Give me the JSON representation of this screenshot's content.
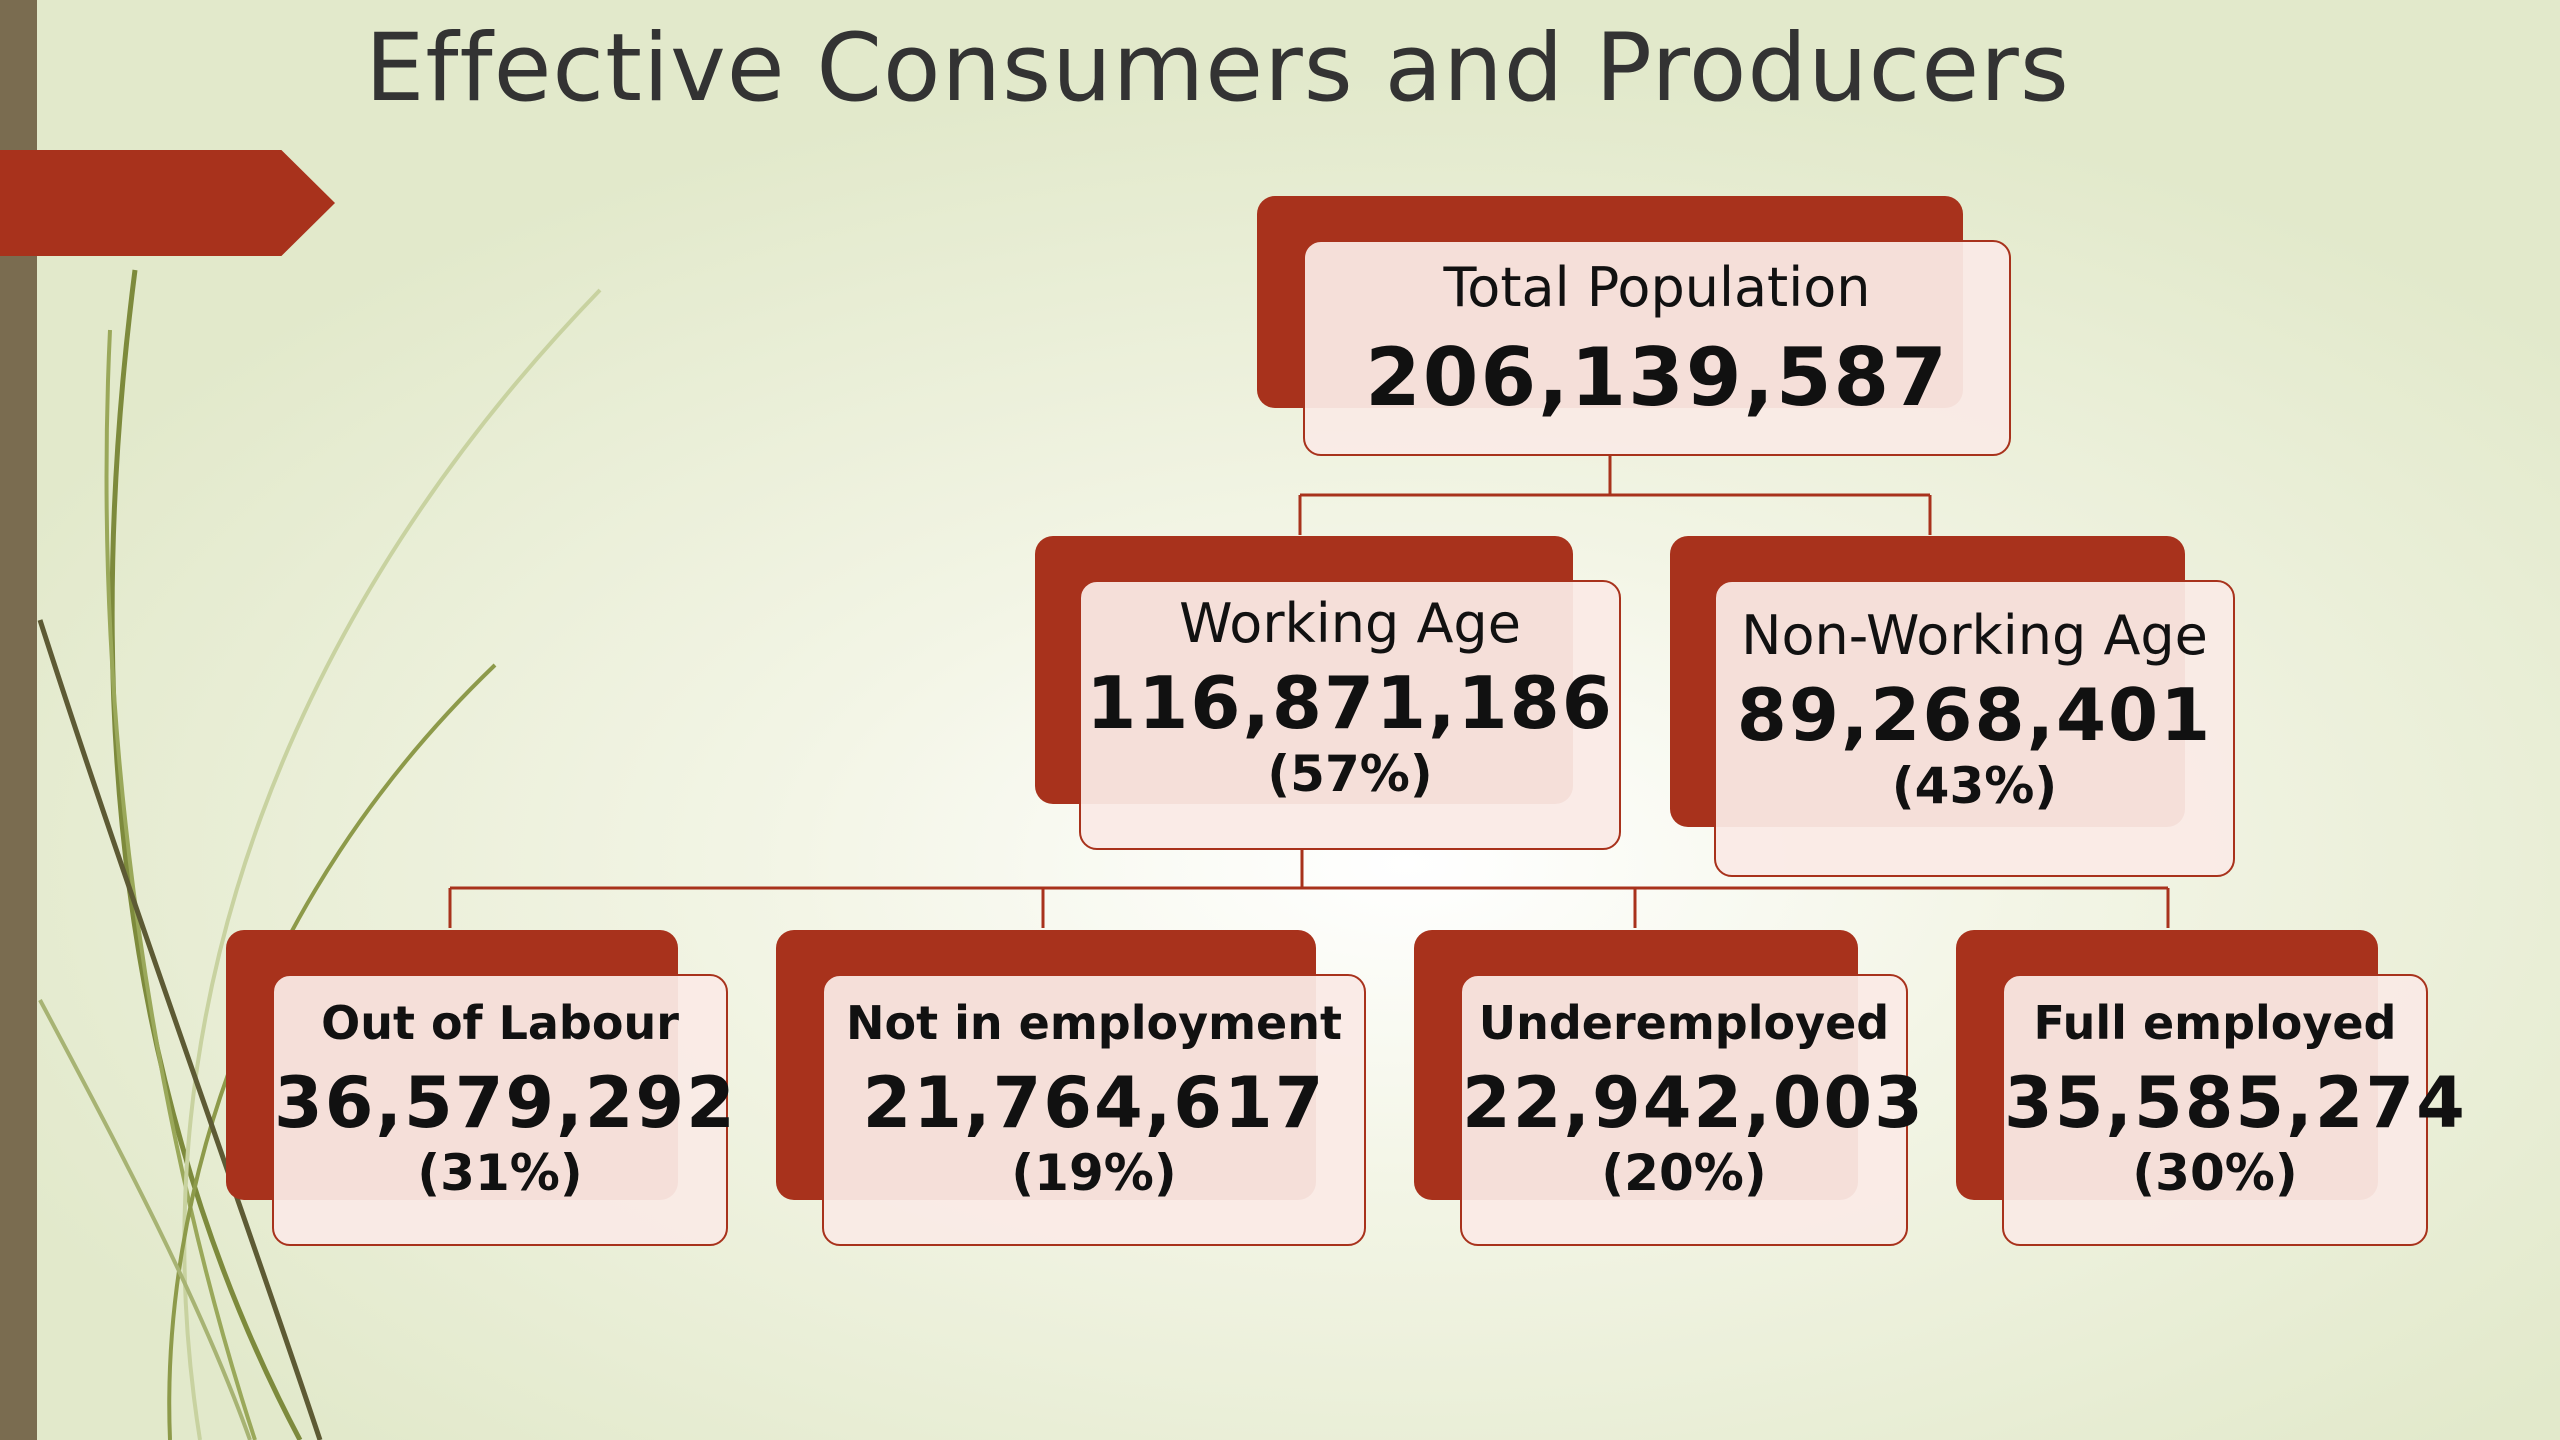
{
  "slide": {
    "title": "Effective Consumers and Producers"
  },
  "colors": {
    "accent": "#a8321c",
    "card_fill": "#faeae6",
    "side_bar": "#7a6c50",
    "background": "#eef1de"
  },
  "diagram": {
    "root": {
      "label": "Total Population",
      "value": "206,139,587"
    },
    "level2": [
      {
        "label": "Working Age",
        "value": "116,871,186",
        "percent": "(57%)"
      },
      {
        "label": "Non-Working Age",
        "value": "89,268,401",
        "percent": "(43%)"
      }
    ],
    "level3": [
      {
        "label": "Out of Labour",
        "value": "36,579,292",
        "percent": "(31%)"
      },
      {
        "label": "Not in employment",
        "value": "21,764,617",
        "percent": "(19%)"
      },
      {
        "label": "Underemployed",
        "value": "22,942,003",
        "percent": "(20%)"
      },
      {
        "label": "Full employed",
        "value": "35,585,274",
        "percent": "(30%)"
      }
    ]
  }
}
